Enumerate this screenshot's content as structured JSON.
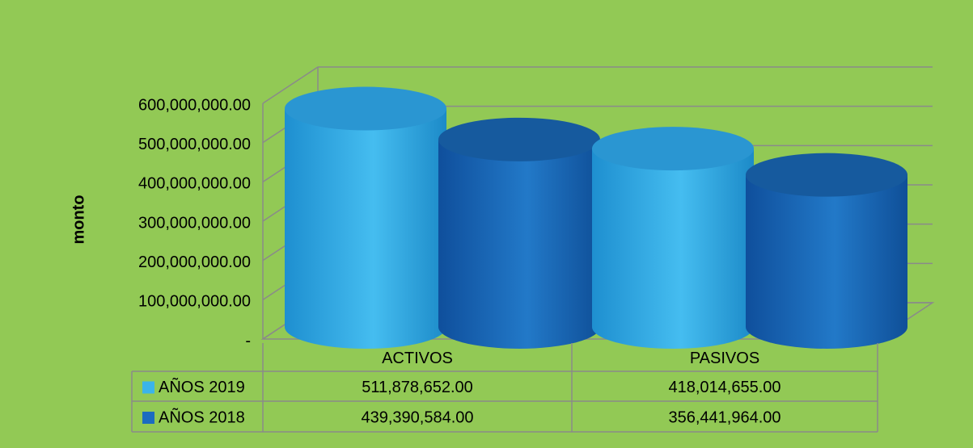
{
  "chart_data": {
    "type": "bar",
    "ylabel": "monto",
    "categories": [
      "ACTIVOS",
      "PASIVOS"
    ],
    "series": [
      {
        "name": "AÑOS 2019",
        "color": "#3bb4ea",
        "values": [
          511878652,
          418014655
        ],
        "value_labels": [
          "511,878,652.00",
          "418,014,655.00"
        ]
      },
      {
        "name": "AÑOS 2018",
        "color": "#1b6cc0",
        "values": [
          439390584,
          356441964
        ],
        "value_labels": [
          "439,390,584.00",
          "356,441,964.00"
        ]
      }
    ],
    "ylim": [
      0,
      600000000
    ],
    "yticks": [
      {
        "value": 0,
        "label": "-"
      },
      {
        "value": 100000000,
        "label": "100,000,000.00"
      },
      {
        "value": 200000000,
        "label": "200,000,000.00"
      },
      {
        "value": 300000000,
        "label": "300,000,000.00"
      },
      {
        "value": 400000000,
        "label": "400,000,000.00"
      },
      {
        "value": 500000000,
        "label": "500,000,000.00"
      },
      {
        "value": 600000000,
        "label": "600,000,000.00"
      }
    ],
    "grid": true
  }
}
